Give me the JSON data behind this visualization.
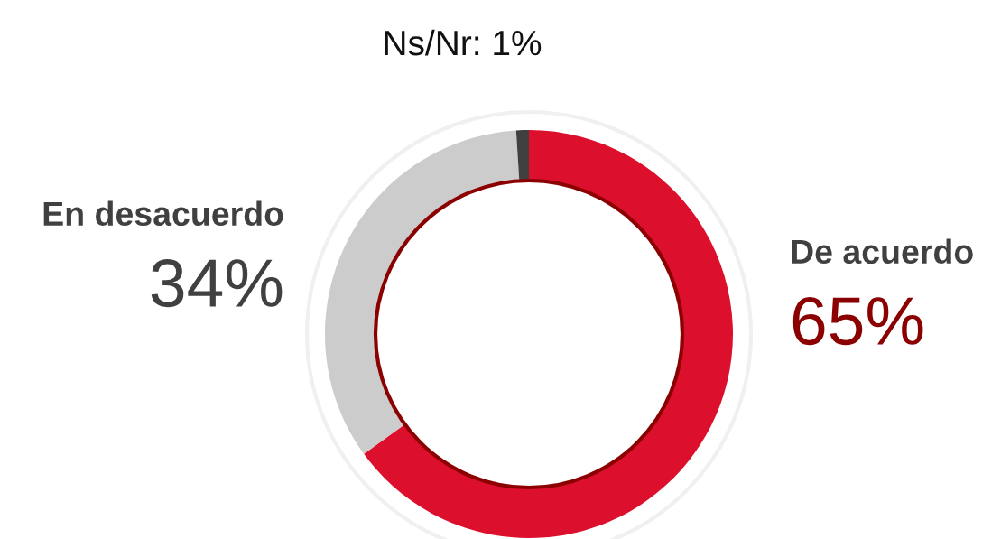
{
  "chart_data": {
    "type": "donut",
    "categories": [
      "De acuerdo",
      "En desacuerdo",
      "Ns/Nr"
    ],
    "values": [
      65,
      34,
      1
    ],
    "colors": [
      "#dc0f2d",
      "#cccccc",
      "#404040"
    ],
    "value_labels": [
      "65%",
      "34%",
      "1%"
    ]
  }
}
